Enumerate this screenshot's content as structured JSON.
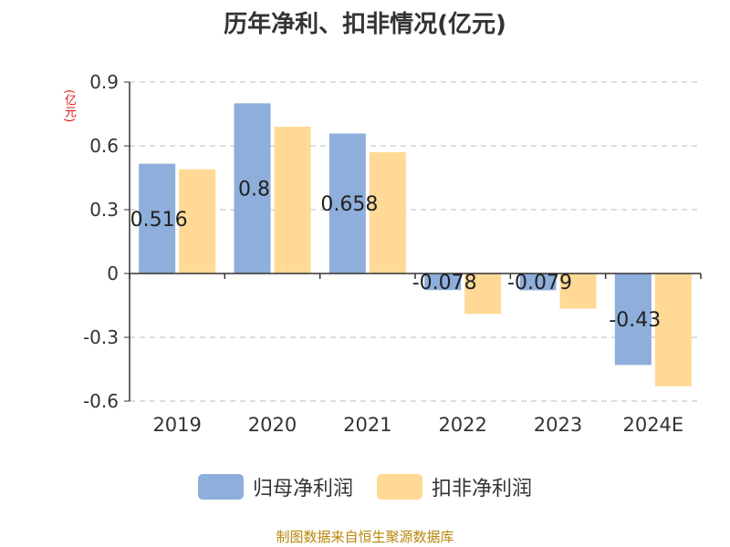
{
  "title": "历年净利、扣非情况(亿元)",
  "y_unit": "(亿元)",
  "source": "制图数据来自恒生聚源数据库",
  "colors": {
    "title": "#333333",
    "unit": "#e0171b",
    "source": "#b8860b",
    "grid": "#bbbbbb",
    "axis": "#333333"
  },
  "chart_data": {
    "type": "bar",
    "title": "历年净利、扣非情况(亿元)",
    "ylabel": "(亿元)",
    "xlabel": "",
    "categories": [
      "2019",
      "2020",
      "2021",
      "2022",
      "2023",
      "2024E"
    ],
    "ylim": [
      -0.6,
      0.9
    ],
    "yticks": [
      -0.6,
      -0.3,
      0,
      0.3,
      0.6,
      0.9
    ],
    "ytick_labels": [
      "-0.6",
      "-0.3",
      "0",
      "0.3",
      "0.6",
      "0.9"
    ],
    "grid": true,
    "legend_position": "bottom",
    "series": [
      {
        "name": "归母净利润",
        "color": "#8eaedb",
        "values": [
          0.516,
          0.8,
          0.658,
          -0.078,
          -0.079,
          -0.43
        ],
        "labels": [
          "0.516",
          "0.8",
          "0.658",
          "-0.078",
          "-0.079",
          "-0.43"
        ]
      },
      {
        "name": "扣非净利润",
        "color": "#ffd995",
        "values": [
          0.49,
          0.69,
          0.57,
          -0.19,
          -0.165,
          -0.53
        ]
      }
    ]
  }
}
